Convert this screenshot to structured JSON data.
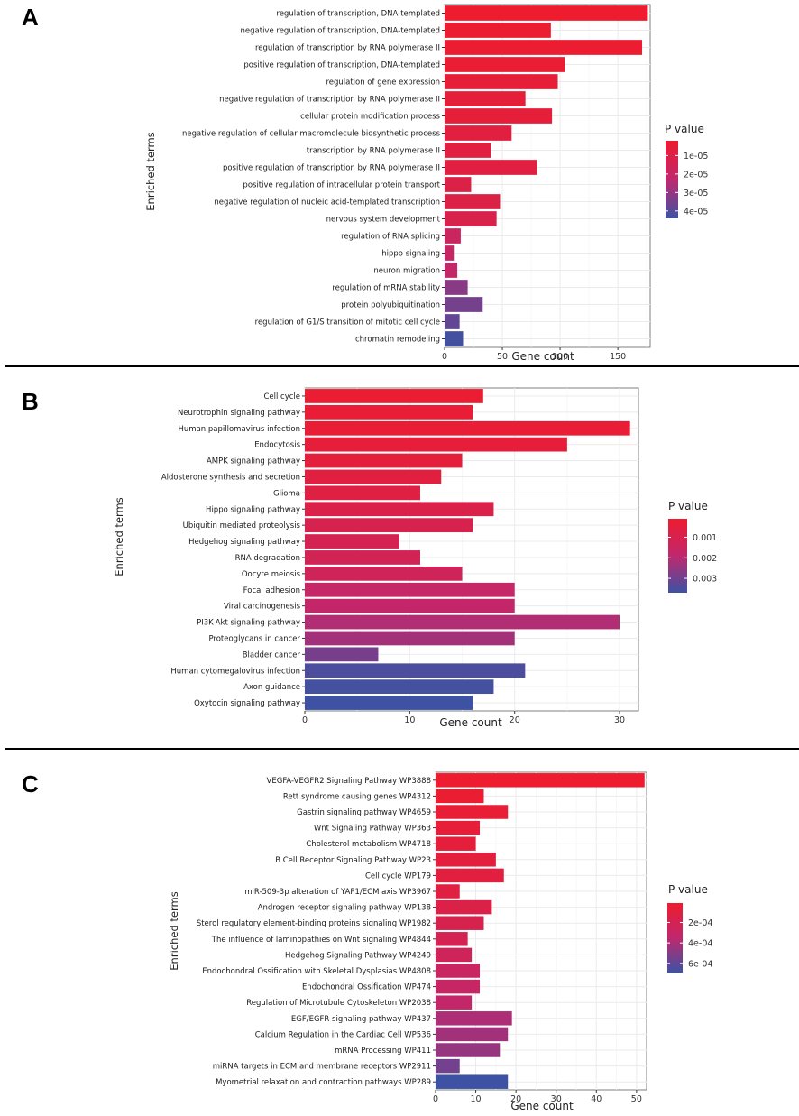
{
  "chart_data": [
    {
      "panel": "A",
      "type": "bar",
      "orientation": "horizontal",
      "xlabel": "Gene count",
      "ylabel": "Enriched terms",
      "xlim": [
        0,
        178
      ],
      "xticks": [
        0,
        50,
        100,
        150
      ],
      "x_tick_labels": [
        "0",
        "50",
        "100",
        "150"
      ],
      "legend_title": "P value",
      "legend_ticks": [
        1e-05,
        2e-05,
        3e-05,
        4e-05
      ],
      "legend_tick_labels": [
        "1e-05",
        "2e-05",
        "3e-05",
        "4e-05"
      ],
      "legend_range": [
        2e-06,
        4.4e-05
      ],
      "color_low": "#ee1c2e",
      "color_high": "#3d52a3",
      "categories": [
        "regulation of transcription, DNA-templated",
        "negative regulation of transcription, DNA-templated",
        "regulation of transcription by RNA polymerase II",
        "positive regulation of transcription, DNA-templated",
        "regulation of gene expression",
        "negative regulation of transcription by RNA polymerase II",
        "cellular protein modification process",
        "negative regulation of cellular macromolecule biosynthetic process",
        "transcription by RNA polymerase II",
        "positive regulation of transcription by RNA polymerase II",
        "positive regulation of intracellular protein transport",
        "negative regulation of nucleic acid-templated transcription",
        "nervous system development",
        "regulation of RNA splicing",
        "hippo signaling",
        "neuron migration",
        "regulation of mRNA stability",
        "protein polyubiquitination",
        "regulation of G1/S transition of mitotic cell cycle",
        "chromatin remodeling"
      ],
      "values": [
        176,
        92,
        171,
        104,
        98,
        70,
        93,
        58,
        40,
        80,
        23,
        48,
        45,
        14,
        8,
        11,
        20,
        33,
        13,
        16
      ],
      "pvalues": [
        2e-06,
        3e-06,
        3e-06,
        4e-06,
        5e-06,
        6e-06,
        6e-06,
        8e-06,
        8e-06,
        8e-06,
        1e-05,
        1e-05,
        1.2e-05,
        1.8e-05,
        2e-05,
        2.1e-05,
        3.2e-05,
        3.5e-05,
        3.8e-05,
        4.3e-05
      ]
    },
    {
      "panel": "B",
      "type": "bar",
      "orientation": "horizontal",
      "xlabel": "Gene count",
      "ylabel": "Enriched terms",
      "xlim": [
        0,
        31.8
      ],
      "xticks": [
        0,
        10,
        20,
        30
      ],
      "x_tick_labels": [
        "0",
        "10",
        "20",
        "30"
      ],
      "legend_title": "P value",
      "legend_ticks": [
        0.001,
        0.002,
        0.003
      ],
      "legend_tick_labels": [
        "0.001",
        "0.002",
        "0.003"
      ],
      "legend_range": [
        0.0001,
        0.0037
      ],
      "color_low": "#ee1c2e",
      "color_high": "#3d52a3",
      "categories": [
        "Cell cycle",
        "Neurotrophin signaling pathway",
        "Human papillomavirus infection",
        "Endocytosis",
        "AMPK signaling pathway",
        "Aldosterone synthesis and secretion",
        "Glioma",
        "Hippo signaling pathway",
        "Ubiquitin mediated proteolysis",
        "Hedgehog signaling pathway",
        "RNA degradation",
        "Oocyte meiosis",
        "Focal adhesion",
        "Viral carcinogenesis",
        "PI3K-Akt signaling pathway",
        "Proteoglycans in cancer",
        "Bladder cancer",
        "Human cytomegalovirus infection",
        "Axon guidance",
        "Oxytocin signaling pathway"
      ],
      "values": [
        17,
        16,
        31,
        25,
        15,
        13,
        11,
        18,
        16,
        9,
        11,
        15,
        20,
        20,
        30,
        20,
        7,
        21,
        18,
        16
      ],
      "pvalues": [
        0.0002,
        0.0003,
        0.0003,
        0.0004,
        0.0005,
        0.0006,
        0.0007,
        0.0009,
        0.001,
        0.0011,
        0.0012,
        0.0013,
        0.0017,
        0.0018,
        0.0021,
        0.0023,
        0.0029,
        0.0035,
        0.0036,
        0.0037
      ]
    },
    {
      "panel": "C",
      "type": "bar",
      "orientation": "horizontal",
      "xlabel": "Gene count",
      "ylabel": "Enriched terms",
      "xlim": [
        0,
        52.5
      ],
      "xticks": [
        0,
        10,
        20,
        30,
        40,
        50
      ],
      "x_tick_labels": [
        "0",
        "10",
        "20",
        "30",
        "40",
        "50"
      ],
      "legend_title": "P value",
      "legend_ticks": [
        0.0002,
        0.0004,
        0.0006
      ],
      "legend_tick_labels": [
        "2e-04",
        "4e-04",
        "6e-04"
      ],
      "legend_range": [
        1e-05,
        0.00069
      ],
      "color_low": "#ee1c2e",
      "color_high": "#3d52a3",
      "categories": [
        "VEGFA-VEGFR2 Signaling Pathway WP3888",
        "Rett syndrome causing genes WP4312",
        "Gastrin signaling pathway WP4659",
        "Wnt Signaling Pathway WP363",
        "Cholesterol metabolism WP4718",
        "B Cell Receptor Signaling Pathway WP23",
        "Cell cycle WP179",
        "miR-509-3p alteration of YAP1/ECM axis WP3967",
        "Androgen receptor signaling pathway WP138",
        "Sterol regulatory element-binding proteins signaling WP1982",
        "The influence of laminopathies on Wnt signaling WP4844",
        "Hedgehog Signaling Pathway WP4249",
        "Endochondral Ossification with Skeletal Dysplasias WP4808",
        "Endochondral Ossification WP474",
        "Regulation of Microtubule Cytoskeleton WP2038",
        "EGF/EGFR signaling pathway WP437",
        "Calcium Regulation in the Cardiac Cell WP536",
        "mRNA Processing WP411",
        "miRNA targets in ECM and membrane receptors WP2911",
        "Myometrial relaxation and contraction pathways WP289"
      ],
      "values": [
        52,
        12,
        18,
        11,
        10,
        15,
        17,
        6,
        14,
        12,
        8,
        9,
        11,
        11,
        9,
        19,
        18,
        16,
        6,
        18
      ],
      "pvalues": [
        1e-05,
        3e-05,
        5e-05,
        7e-05,
        8e-05,
        9e-05,
        0.0001,
        0.00012,
        0.00015,
        0.00018,
        0.0002,
        0.00024,
        0.00028,
        0.0003,
        0.00033,
        0.0004,
        0.00043,
        0.00046,
        0.00055,
        0.00069
      ]
    }
  ]
}
